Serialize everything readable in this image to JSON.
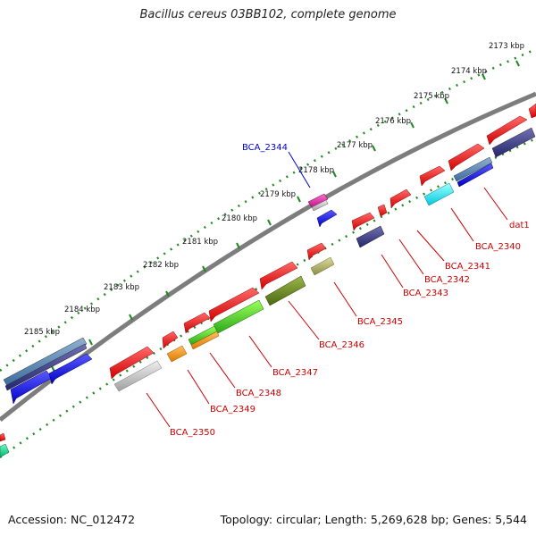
{
  "title": "Bacillus cereus 03BB102, complete genome",
  "footer": {
    "accession": "Accession: NC_012472",
    "topology": "Topology: circular; Length: 5,269,628 bp; Genes: 5,544"
  },
  "ruler": {
    "unit": "kbp",
    "ticks": [
      {
        "label": "2173 kbp"
      },
      {
        "label": "2174 kbp"
      },
      {
        "label": "2175 kbp"
      },
      {
        "label": "2176 kbp"
      },
      {
        "label": "2177 kbp"
      },
      {
        "label": "2178 kbp"
      },
      {
        "label": "2179 kbp"
      },
      {
        "label": "2180 kbp"
      },
      {
        "label": "2181 kbp"
      },
      {
        "label": "2182 kbp"
      },
      {
        "label": "2183 kbp"
      },
      {
        "label": "2184 kbp"
      },
      {
        "label": "2185 kbp"
      }
    ]
  },
  "colors": {
    "backbone": "#7a7a7a",
    "ruler_dots": "#1f8a1f",
    "label_red": "#cc0000",
    "label_blue": "#0000cc"
  },
  "gene_labels": [
    {
      "name": "BCA_2344",
      "color": "#0000cc"
    },
    {
      "name": "dat1",
      "color": "#cc0000"
    },
    {
      "name": "BCA_2340",
      "color": "#cc0000"
    },
    {
      "name": "BCA_2341",
      "color": "#cc0000"
    },
    {
      "name": "BCA_2342",
      "color": "#cc0000"
    },
    {
      "name": "BCA_2343",
      "color": "#cc0000"
    },
    {
      "name": "BCA_2345",
      "color": "#cc0000"
    },
    {
      "name": "BCA_2346",
      "color": "#cc0000"
    },
    {
      "name": "BCA_2347",
      "color": "#cc0000"
    },
    {
      "name": "BCA_2348",
      "color": "#cc0000"
    },
    {
      "name": "BCA_2349",
      "color": "#cc0000"
    },
    {
      "name": "BCA_2350",
      "color": "#cc0000"
    }
  ]
}
